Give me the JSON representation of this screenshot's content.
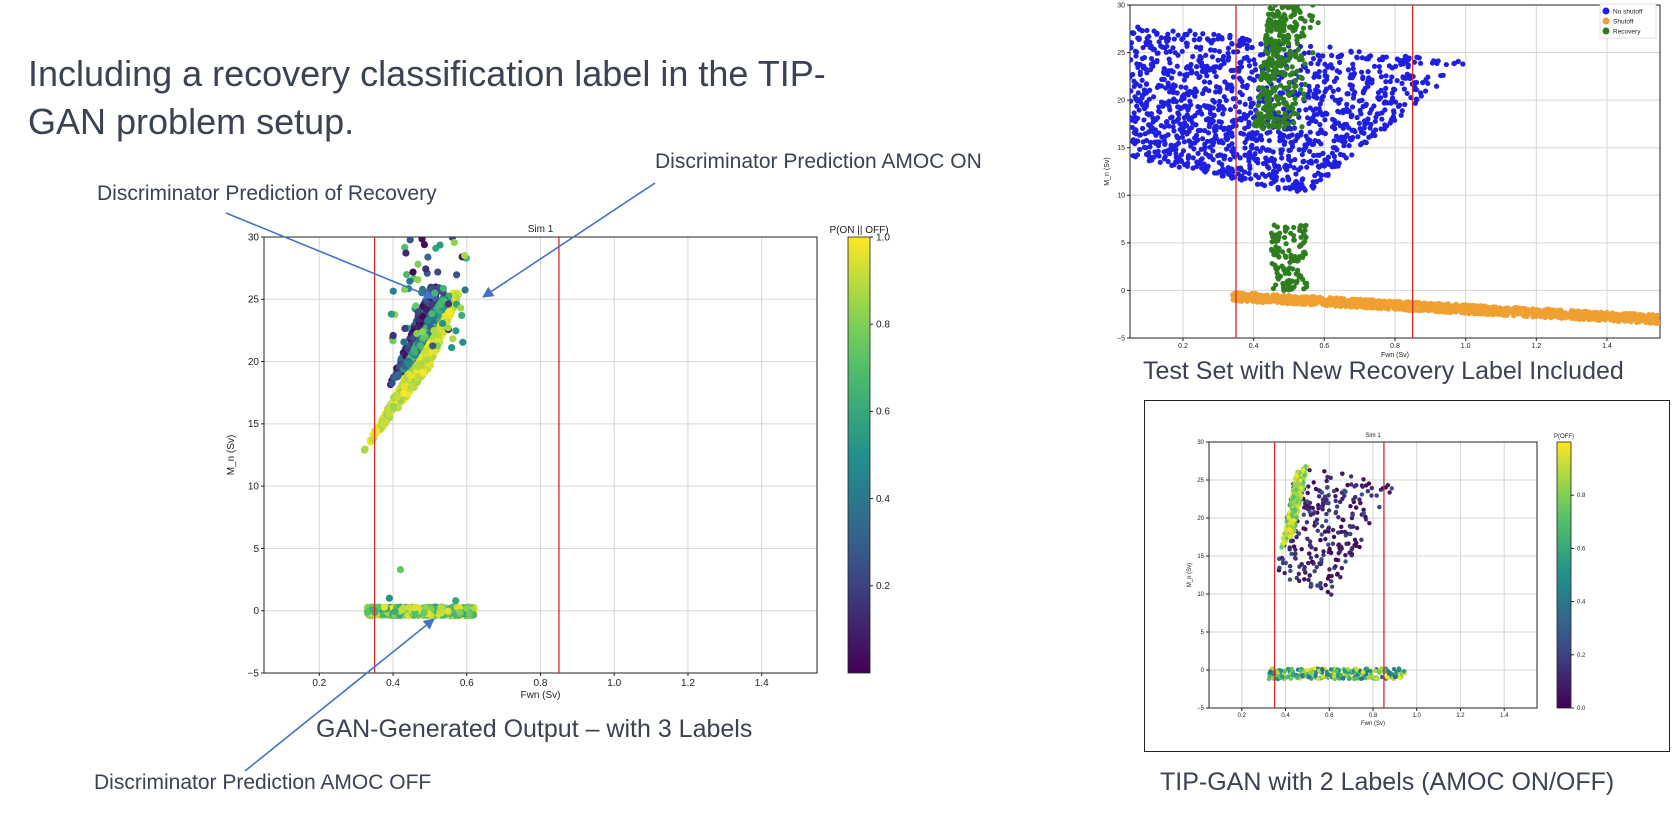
{
  "slide": {
    "title": "Including a recovery classification label in the TIP-GAN problem setup.",
    "callouts": {
      "recovery": "Discriminator Prediction of Recovery",
      "amoc_on": "Discriminator Prediction AMOC ON",
      "amoc_off": "Discriminator Prediction AMOC OFF"
    },
    "captions": {
      "main": "GAN-Generated Output – with 3 Labels",
      "test_set": "Test Set with New Recovery Label Included",
      "two_labels": "TIP-GAN with 2 Labels (AMOC ON/OFF)"
    },
    "colors": {
      "text": "#3b4252",
      "arrow": "#4472c4",
      "threshold_line": "#d62728",
      "no_shutoff": "#1f1fe0",
      "shutoff": "#f0a030",
      "recovery": "#2e7d1e"
    }
  },
  "chart_data": [
    {
      "id": "main",
      "type": "scatter",
      "title": "Sim 1",
      "xlabel": "Fwn (Sv)",
      "ylabel": "M_n (Sv)",
      "xlim": [
        0.05,
        1.55
      ],
      "ylim": [
        -5,
        30
      ],
      "xticks": [
        0.2,
        0.4,
        0.6,
        0.8,
        1.0,
        1.2,
        1.4
      ],
      "yticks": [
        -5,
        0,
        5,
        10,
        15,
        20,
        25,
        30
      ],
      "xtick_labels": [
        "0.2",
        "0.4",
        "0.6",
        "0.8",
        "1.0",
        "1.2",
        "1.4"
      ],
      "ytick_labels": [
        "−5",
        "0",
        "5",
        "10",
        "15",
        "20",
        "25",
        "30"
      ],
      "vlines": [
        0.35,
        0.85
      ],
      "grid": true,
      "colormap": "viridis",
      "colorbar": {
        "label": "P(ON || OFF)",
        "ticks": [
          0.2,
          0.4,
          0.6,
          0.8,
          1.0
        ],
        "tick_labels": [
          "0.2",
          "0.4",
          "0.6",
          "0.8",
          "1.0"
        ]
      },
      "clusters": [
        {
          "kind": "ribbon",
          "x_from": [
            0.32,
            0.5
          ],
          "x_to": [
            0.56,
            0.58
          ],
          "y_from": [
            12.8,
            19.5
          ],
          "y_to": [
            25.5,
            25.5
          ],
          "p": [
            0.85,
            1.0
          ]
        },
        {
          "kind": "edge",
          "x_from": [
            0.39,
            0.42
          ],
          "x_to": [
            0.5,
            0.53
          ],
          "y_from": [
            18,
            19
          ],
          "y_to": [
            26,
            26
          ],
          "p": [
            0.0,
            0.35
          ]
        },
        {
          "kind": "edge",
          "x_from": [
            0.42,
            0.45
          ],
          "x_to": [
            0.53,
            0.56
          ],
          "y_from": [
            19,
            20
          ],
          "y_to": [
            25,
            25.5
          ],
          "p": [
            0.3,
            0.7
          ]
        },
        {
          "kind": "scatter",
          "x": [
            0.39,
            0.6
          ],
          "y": [
            21,
            30
          ],
          "p": [
            0.0,
            0.9
          ]
        },
        {
          "kind": "band",
          "x": [
            0.33,
            0.62
          ],
          "y": [
            -0.4,
            0.3
          ],
          "p": [
            0.55,
            1.0
          ]
        }
      ],
      "outliers": [
        {
          "x": 0.42,
          "y": 3.3,
          "p": 0.75
        },
        {
          "x": 0.39,
          "y": 1.0,
          "p": 0.5
        },
        {
          "x": 0.57,
          "y": 0.8,
          "p": 0.6
        }
      ]
    },
    {
      "id": "test_set",
      "type": "scatter",
      "xlabel": "Fwn (Sv)",
      "ylabel": "M_n (Sv)",
      "xlim": [
        0.05,
        1.55
      ],
      "ylim": [
        -5,
        30
      ],
      "xticks": [
        0.2,
        0.4,
        0.6,
        0.8,
        1.0,
        1.2,
        1.4
      ],
      "yticks": [
        -5,
        0,
        5,
        10,
        15,
        20,
        25,
        30
      ],
      "xtick_labels": [
        "0.2",
        "0.4",
        "0.6",
        "0.8",
        "1.0",
        "1.2",
        "1.4"
      ],
      "ytick_labels": [
        "−5",
        "0",
        "5",
        "10",
        "15",
        "20",
        "25",
        "30"
      ],
      "vlines": [
        0.35,
        0.85
      ],
      "grid": true,
      "legend": {
        "position": "top-right",
        "entries": [
          {
            "name": "No shutoff",
            "color": "#1f1fe0"
          },
          {
            "name": "Shutoff",
            "color": "#f0a030"
          },
          {
            "name": "Recovery",
            "color": "#2e7d1e"
          }
        ]
      },
      "series": [
        {
          "name": "No shutoff",
          "color": "#1f1fe0",
          "region": {
            "corners": [
              [
                0.05,
                14
              ],
              [
                0.05,
                28
              ],
              [
                1.0,
                24
              ],
              [
                0.55,
                10
              ]
            ]
          }
        },
        {
          "name": "Shutoff",
          "color": "#f0a030",
          "region": {
            "corners": [
              [
                0.34,
                -0.2
              ],
              [
                1.55,
                -2.6
              ]
            ]
          }
        },
        {
          "name": "Recovery",
          "color": "#2e7d1e",
          "region": {
            "corners": [
              [
                0.4,
                17
              ],
              [
                0.55,
                30
              ]
            ],
            "scatter_y": [
              0,
              7
            ]
          }
        }
      ]
    },
    {
      "id": "two_labels",
      "type": "scatter",
      "title": "Sim 1",
      "xlabel": "Fwn (Sv)",
      "ylabel": "M_n (Sv)",
      "xlim": [
        0.05,
        1.55
      ],
      "ylim": [
        -5,
        30
      ],
      "xticks": [
        0.2,
        0.4,
        0.6,
        0.8,
        1.0,
        1.2,
        1.4
      ],
      "yticks": [
        -5,
        0,
        5,
        10,
        15,
        20,
        25,
        30
      ],
      "xtick_labels": [
        "0.2",
        "0.4",
        "0.6",
        "0.8",
        "1.0",
        "1.2",
        "1.4"
      ],
      "ytick_labels": [
        "−5",
        "0",
        "5",
        "10",
        "15",
        "20",
        "25",
        "30"
      ],
      "vlines": [
        0.35,
        0.85
      ],
      "grid": true,
      "colormap": "viridis",
      "colorbar": {
        "label": "P(OFF)",
        "ticks": [
          0.0,
          0.2,
          0.4,
          0.6,
          0.8
        ],
        "tick_labels": [
          "0.0",
          "0.2",
          "0.4",
          "0.6",
          "0.8"
        ]
      },
      "clusters": [
        {
          "kind": "quad",
          "corners": [
            [
              0.35,
              12.5
            ],
            [
              0.45,
              27
            ],
            [
              0.9,
              24.5
            ],
            [
              0.62,
              9.5
            ]
          ],
          "p": [
            0.0,
            0.25
          ]
        },
        {
          "kind": "ribbon",
          "x_from": [
            0.38,
            0.44
          ],
          "x_to": [
            0.45,
            0.5
          ],
          "y_from": [
            16,
            18
          ],
          "y_to": [
            26,
            27
          ],
          "p": [
            0.7,
            1.0
          ]
        },
        {
          "kind": "band",
          "x": [
            0.32,
            0.95
          ],
          "y": [
            -1.2,
            0.2
          ],
          "p": [
            0.3,
            1.0
          ]
        }
      ]
    }
  ]
}
